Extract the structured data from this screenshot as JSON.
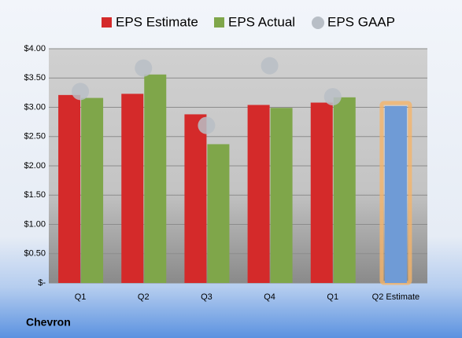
{
  "chart_data": {
    "type": "bar",
    "title": "Chevron",
    "categories": [
      "Q1",
      "Q2",
      "Q3",
      "Q4",
      "Q1",
      "Q2 Estimate"
    ],
    "series": [
      {
        "name": "EPS Estimate",
        "color": "#d42a2a",
        "values": [
          3.21,
          3.23,
          2.88,
          3.04,
          3.08,
          3.02
        ],
        "highlight_color": "#6f9bd6"
      },
      {
        "name": "EPS Actual",
        "color": "#7fa64a",
        "values": [
          3.16,
          3.56,
          2.37,
          2.99,
          3.17,
          null
        ]
      },
      {
        "name": "EPS GAAP",
        "color": "#b8bec6",
        "type": "scatter",
        "values": [
          3.27,
          3.67,
          2.69,
          3.71,
          3.18,
          null
        ]
      }
    ],
    "ylim": [
      0,
      4
    ],
    "yticks": [
      {
        "value": 0,
        "label": "$-"
      },
      {
        "value": 0.5,
        "label": "$0.50"
      },
      {
        "value": 1,
        "label": "$1.00"
      },
      {
        "value": 1.5,
        "label": "$1.50"
      },
      {
        "value": 2,
        "label": "$2.00"
      },
      {
        "value": 2.5,
        "label": "$2.50"
      },
      {
        "value": 3,
        "label": "$3.00"
      },
      {
        "value": 3.5,
        "label": "$3.50"
      },
      {
        "value": 4,
        "label": "$4.00"
      }
    ],
    "grid": true
  }
}
